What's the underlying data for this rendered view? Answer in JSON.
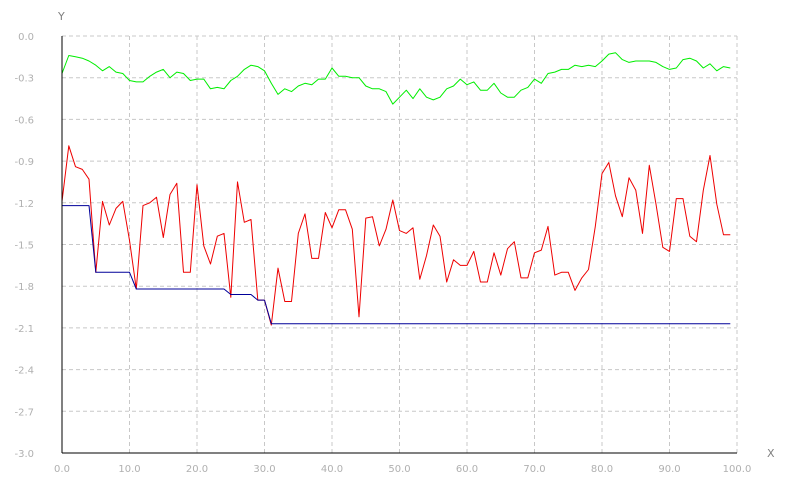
{
  "chart_data": {
    "type": "line",
    "xlabel": "X",
    "ylabel": "Y",
    "xlim": [
      0,
      100
    ],
    "ylim": [
      -3.0,
      0.0
    ],
    "xticks": [
      "0.0",
      "10.0",
      "20.0",
      "30.0",
      "40.0",
      "50.0",
      "60.0",
      "70.0",
      "80.0",
      "90.0",
      "100.0"
    ],
    "yticks": [
      "0.0",
      "-0.3",
      "-0.6",
      "-0.9",
      "-1.2",
      "-1.5",
      "-1.8",
      "-2.1",
      "-2.4",
      "-2.7",
      "-3.0"
    ],
    "grid": true,
    "colors": {
      "green": "#00ee00",
      "red": "#ee0000",
      "blue": "#000099",
      "grid": "#c8c8c8",
      "axis": "#000000"
    },
    "series": [
      {
        "key": "green",
        "color": "#00ee00",
        "x": [
          0,
          1,
          2,
          3,
          4,
          5,
          6,
          7,
          8,
          9,
          10,
          11,
          12,
          13,
          14,
          15,
          16,
          17,
          18,
          19,
          20,
          21,
          22,
          23,
          24,
          25,
          26,
          27,
          28,
          29,
          30,
          31,
          32,
          33,
          34,
          35,
          36,
          37,
          38,
          39,
          40,
          41,
          42,
          43,
          44,
          45,
          46,
          47,
          48,
          49,
          50,
          51,
          52,
          53,
          54,
          55,
          56,
          57,
          58,
          59,
          60,
          61,
          62,
          63,
          64,
          65,
          66,
          67,
          68,
          69,
          70,
          71,
          72,
          73,
          74,
          75,
          76,
          77,
          78,
          79,
          80,
          81,
          82,
          83,
          84,
          85,
          86,
          87,
          88,
          89,
          90,
          91,
          92,
          93,
          94,
          95,
          96,
          97,
          98,
          99
        ],
        "y": [
          -0.27,
          -0.14,
          -0.15,
          -0.16,
          -0.18,
          -0.21,
          -0.25,
          -0.22,
          -0.26,
          -0.27,
          -0.32,
          -0.33,
          -0.33,
          -0.29,
          -0.26,
          -0.24,
          -0.3,
          -0.26,
          -0.27,
          -0.32,
          -0.31,
          -0.31,
          -0.38,
          -0.37,
          -0.38,
          -0.32,
          -0.29,
          -0.24,
          -0.21,
          -0.22,
          -0.25,
          -0.34,
          -0.42,
          -0.38,
          -0.4,
          -0.36,
          -0.34,
          -0.35,
          -0.31,
          -0.31,
          -0.23,
          -0.29,
          -0.29,
          -0.3,
          -0.3,
          -0.36,
          -0.38,
          -0.38,
          -0.4,
          -0.49,
          -0.44,
          -0.39,
          -0.45,
          -0.38,
          -0.44,
          -0.46,
          -0.44,
          -0.38,
          -0.36,
          -0.31,
          -0.35,
          -0.33,
          -0.39,
          -0.39,
          -0.34,
          -0.41,
          -0.44,
          -0.44,
          -0.39,
          -0.37,
          -0.31,
          -0.34,
          -0.27,
          -0.26,
          -0.24,
          -0.24,
          -0.21,
          -0.22,
          -0.21,
          -0.22,
          -0.18,
          -0.13,
          -0.12,
          -0.17,
          -0.19,
          -0.18,
          -0.18,
          -0.18,
          -0.19,
          -0.22,
          -0.24,
          -0.23,
          -0.17,
          -0.16,
          -0.18,
          -0.23,
          -0.2,
          -0.25,
          -0.22,
          -0.23
        ]
      },
      {
        "key": "red",
        "color": "#ee0000",
        "x": [
          0,
          1,
          2,
          3,
          4,
          5,
          6,
          7,
          8,
          9,
          10,
          11,
          12,
          13,
          14,
          15,
          16,
          17,
          18,
          19,
          20,
          21,
          22,
          23,
          24,
          25,
          26,
          27,
          28,
          29,
          30,
          31,
          32,
          33,
          34,
          35,
          36,
          37,
          38,
          39,
          40,
          41,
          42,
          43,
          44,
          45,
          46,
          47,
          48,
          49,
          50,
          51,
          52,
          53,
          54,
          55,
          56,
          57,
          58,
          59,
          60,
          61,
          62,
          63,
          64,
          65,
          66,
          67,
          68,
          69,
          70,
          71,
          72,
          73,
          74,
          75,
          76,
          77,
          78,
          79,
          80,
          81,
          82,
          83,
          84,
          85,
          86,
          87,
          88,
          89,
          90,
          91,
          92,
          93,
          94,
          95,
          96,
          97,
          98,
          99
        ],
        "y": [
          -1.19,
          -0.79,
          -0.94,
          -0.96,
          -1.03,
          -1.7,
          -1.19,
          -1.36,
          -1.24,
          -1.19,
          -1.47,
          -1.82,
          -1.22,
          -1.2,
          -1.16,
          -1.45,
          -1.14,
          -1.06,
          -1.7,
          -1.7,
          -1.07,
          -1.51,
          -1.64,
          -1.44,
          -1.42,
          -1.88,
          -1.05,
          -1.34,
          -1.32,
          -1.9,
          -1.9,
          -2.08,
          -1.67,
          -1.91,
          -1.91,
          -1.42,
          -1.28,
          -1.6,
          -1.6,
          -1.27,
          -1.38,
          -1.25,
          -1.25,
          -1.39,
          -2.02,
          -1.31,
          -1.3,
          -1.51,
          -1.39,
          -1.18,
          -1.4,
          -1.42,
          -1.38,
          -1.75,
          -1.58,
          -1.36,
          -1.44,
          -1.77,
          -1.61,
          -1.65,
          -1.65,
          -1.55,
          -1.77,
          -1.77,
          -1.56,
          -1.72,
          -1.53,
          -1.48,
          -1.74,
          -1.74,
          -1.56,
          -1.54,
          -1.37,
          -1.72,
          -1.7,
          -1.7,
          -1.83,
          -1.74,
          -1.68,
          -1.37,
          -0.99,
          -0.91,
          -1.15,
          -1.3,
          -1.02,
          -1.11,
          -1.42,
          -0.93,
          -1.21,
          -1.52,
          -1.55,
          -1.17,
          -1.17,
          -1.44,
          -1.48,
          -1.11,
          -0.86,
          -1.21,
          -1.43,
          -1.43
        ]
      },
      {
        "key": "blue",
        "color": "#000099",
        "x": [
          0,
          1,
          2,
          3,
          4,
          5,
          6,
          7,
          8,
          9,
          10,
          11,
          12,
          13,
          14,
          15,
          16,
          17,
          18,
          19,
          20,
          21,
          22,
          23,
          24,
          25,
          26,
          27,
          28,
          29,
          30,
          31,
          32,
          33,
          34,
          35,
          36,
          37,
          38,
          39,
          40,
          41,
          42,
          43,
          44,
          45,
          46,
          47,
          48,
          49,
          50,
          51,
          52,
          53,
          54,
          55,
          56,
          57,
          58,
          59,
          60,
          61,
          62,
          63,
          64,
          65,
          66,
          67,
          68,
          69,
          70,
          71,
          72,
          73,
          74,
          75,
          76,
          77,
          78,
          79,
          80,
          81,
          82,
          83,
          84,
          85,
          86,
          87,
          88,
          89,
          90,
          91,
          92,
          93,
          94,
          95,
          96,
          97,
          98,
          99
        ],
        "y": [
          -1.22,
          -1.22,
          -1.22,
          -1.22,
          -1.22,
          -1.7,
          -1.7,
          -1.7,
          -1.7,
          -1.7,
          -1.7,
          -1.82,
          -1.82,
          -1.82,
          -1.82,
          -1.82,
          -1.82,
          -1.82,
          -1.82,
          -1.82,
          -1.82,
          -1.82,
          -1.82,
          -1.82,
          -1.82,
          -1.86,
          -1.86,
          -1.86,
          -1.86,
          -1.9,
          -1.9,
          -2.07,
          -2.07,
          -2.07,
          -2.07,
          -2.07,
          -2.07,
          -2.07,
          -2.07,
          -2.07,
          -2.07,
          -2.07,
          -2.07,
          -2.07,
          -2.07,
          -2.07,
          -2.07,
          -2.07,
          -2.07,
          -2.07,
          -2.07,
          -2.07,
          -2.07,
          -2.07,
          -2.07,
          -2.07,
          -2.07,
          -2.07,
          -2.07,
          -2.07,
          -2.07,
          -2.07,
          -2.07,
          -2.07,
          -2.07,
          -2.07,
          -2.07,
          -2.07,
          -2.07,
          -2.07,
          -2.07,
          -2.07,
          -2.07,
          -2.07,
          -2.07,
          -2.07,
          -2.07,
          -2.07,
          -2.07,
          -2.07,
          -2.07,
          -2.07,
          -2.07,
          -2.07,
          -2.07,
          -2.07,
          -2.07,
          -2.07,
          -2.07,
          -2.07,
          -2.07,
          -2.07,
          -2.07,
          -2.07,
          -2.07,
          -2.07,
          -2.07,
          -2.07,
          -2.07,
          -2.07
        ]
      }
    ]
  }
}
